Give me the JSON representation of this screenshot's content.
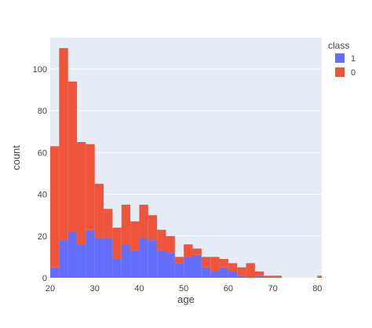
{
  "chart_data": {
    "type": "bar",
    "barmode": "stack",
    "xlabel": "age",
    "ylabel": "count",
    "xlim": [
      20,
      81
    ],
    "ylim": [
      0,
      115
    ],
    "x_ticks": [
      20,
      30,
      40,
      50,
      60,
      70,
      80
    ],
    "y_ticks": [
      0,
      20,
      40,
      60,
      80,
      100
    ],
    "bin_start": 20,
    "bin_width": 2,
    "legend": {
      "title": "class",
      "position": "top-right"
    },
    "series": [
      {
        "name": "1",
        "color": "#636efa",
        "values": [
          5,
          18,
          22,
          16,
          23,
          19,
          19,
          9,
          16,
          13,
          19,
          18,
          13,
          12,
          7,
          10,
          11,
          5,
          3,
          5,
          3,
          1,
          0,
          1,
          0,
          0,
          0,
          0,
          0,
          0,
          0
        ]
      },
      {
        "name": "0",
        "color": "#ef553b",
        "values": [
          58,
          92,
          72,
          49,
          41,
          26,
          14,
          15,
          19,
          14,
          16,
          12,
          10,
          8,
          3,
          6,
          3,
          5,
          7,
          4,
          4,
          4,
          7,
          2,
          1,
          1,
          0,
          0,
          0,
          0,
          1
        ]
      }
    ]
  }
}
